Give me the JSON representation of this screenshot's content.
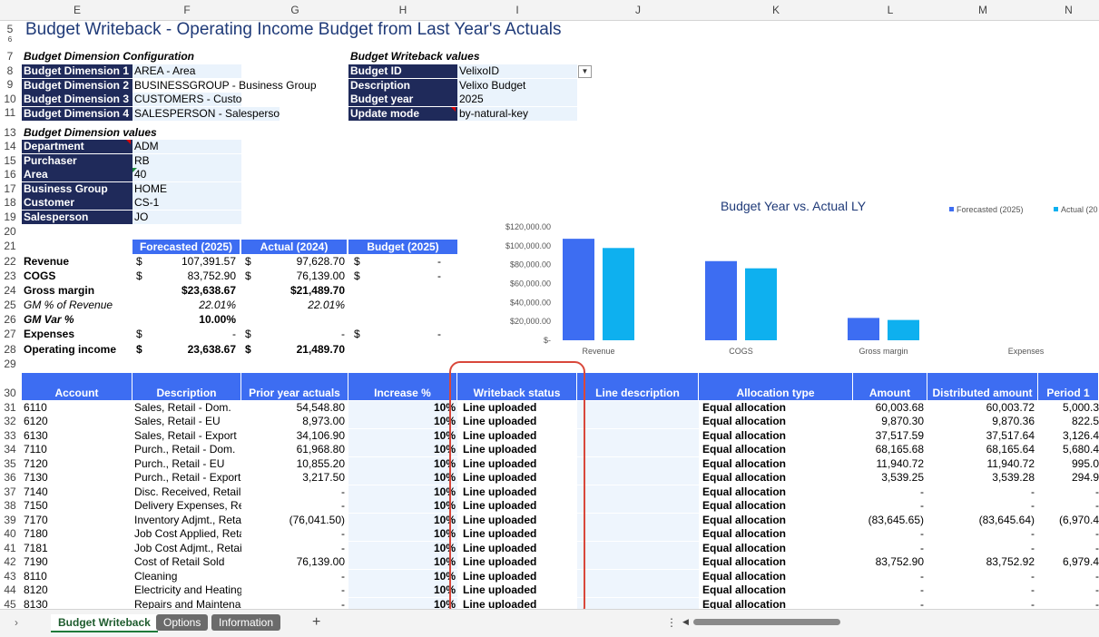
{
  "columns": [
    "E",
    "F",
    "G",
    "H",
    "I",
    "J",
    "K",
    "L",
    "M",
    "N"
  ],
  "title": "Budget Writeback - Operating Income Budget from Last Year's Actuals",
  "dim_config": {
    "heading": "Budget Dimension Configuration",
    "rows": [
      {
        "label": "Budget Dimension 1",
        "value": "AREA - Area"
      },
      {
        "label": "Budget Dimension 2",
        "value": "BUSINESSGROUP - Business Group"
      },
      {
        "label": "Budget Dimension 3",
        "value": "CUSTOMERS - Customer"
      },
      {
        "label": "Budget Dimension 4",
        "value": "SALESPERSON - Salesperson"
      }
    ]
  },
  "writeback_values": {
    "heading": "Budget Writeback values",
    "rows": [
      {
        "label": "Budget ID",
        "value": "VelixoID"
      },
      {
        "label": "Description",
        "value": "Velixo Budget"
      },
      {
        "label": "Budget year",
        "value": "2025"
      },
      {
        "label": "Update mode",
        "value": "by-natural-key"
      }
    ]
  },
  "dim_values": {
    "heading": "Budget Dimension values",
    "rows": [
      {
        "label": "Department",
        "value": "ADM"
      },
      {
        "label": "Purchaser",
        "value": "RB"
      },
      {
        "label": "Area",
        "value": "40"
      },
      {
        "label": "Business Group",
        "value": "HOME"
      },
      {
        "label": "Customer",
        "value": "CS-1"
      },
      {
        "label": "Salesperson",
        "value": "JO"
      }
    ]
  },
  "summary": {
    "headers": [
      "Forecasted (2025)",
      "Actual (2024)",
      "Budget (2025)"
    ],
    "rows": [
      {
        "label": "Revenue",
        "c1": "$",
        "v1": "107,391.57",
        "c2": "$",
        "v2": "97,628.70",
        "c3": "$",
        "v3": "-",
        "style": "b"
      },
      {
        "label": "COGS",
        "c1": "$",
        "v1": "83,752.90",
        "c2": "$",
        "v2": "76,139.00",
        "c3": "$",
        "v3": "-",
        "style": "b"
      },
      {
        "label": "Gross margin",
        "c1": "",
        "v1": "$23,638.67",
        "c2": "",
        "v2": "$21,489.70",
        "c3": "",
        "v3": "",
        "style": "bb"
      },
      {
        "label": "GM % of Revenue",
        "c1": "",
        "v1": "22.01%",
        "c2": "",
        "v2": "22.01%",
        "c3": "",
        "v3": "",
        "style": "i"
      },
      {
        "label": "GM Var %",
        "c1": "",
        "v1": "10.00%",
        "c2": "",
        "v2": "",
        "c3": "",
        "v3": "",
        "style": "bi"
      },
      {
        "label": "Expenses",
        "c1": "$",
        "v1": "-",
        "c2": "$",
        "v2": "-",
        "c3": "$",
        "v3": "-",
        "style": "b"
      },
      {
        "label": "Operating income",
        "c1": "$",
        "v1": "23,638.67",
        "c2": "$",
        "v2": "21,489.70",
        "c3": "",
        "v3": "",
        "style": "bb"
      }
    ]
  },
  "chart_data": {
    "type": "bar",
    "title": "Budget Year vs. Actual LY",
    "categories": [
      "Revenue",
      "COGS",
      "Gross margin",
      "Expenses"
    ],
    "series": [
      {
        "name": "Forecasted (2025)",
        "color": "#3d6df2",
        "values": [
          107391.57,
          83752.9,
          23638.67,
          0
        ]
      },
      {
        "name": "Actual (20",
        "color": "#0eb0ef",
        "values": [
          97628.7,
          76139.0,
          21489.7,
          0
        ]
      }
    ],
    "ylim": [
      0,
      120000
    ],
    "yticks": [
      "$-",
      "$20,000.00",
      "$40,000.00",
      "$60,000.00",
      "$80,000.00",
      "$100,000.00",
      "$120,000.00"
    ],
    "legend": "top-right"
  },
  "table": {
    "headers": [
      "Account",
      "Description",
      "Prior year actuals",
      "Increase %",
      "Writeback status",
      "Line description",
      "Allocation type",
      "Amount",
      "Distributed amount",
      "Period 1"
    ],
    "rows": [
      [
        "6110",
        "Sales, Retail - Dom.",
        "54,548.80",
        "10%",
        "Line uploaded",
        "",
        "Equal allocation",
        "60,003.68",
        "60,003.72",
        "5,000.3"
      ],
      [
        "6120",
        "Sales, Retail - EU",
        "8,973.00",
        "10%",
        "Line uploaded",
        "",
        "Equal allocation",
        "9,870.30",
        "9,870.36",
        "822.5"
      ],
      [
        "6130",
        "Sales, Retail - Export",
        "34,106.90",
        "10%",
        "Line uploaded",
        "",
        "Equal allocation",
        "37,517.59",
        "37,517.64",
        "3,126.4"
      ],
      [
        "7110",
        "Purch., Retail - Dom.",
        "61,968.80",
        "10%",
        "Line uploaded",
        "",
        "Equal allocation",
        "68,165.68",
        "68,165.64",
        "5,680.4"
      ],
      [
        "7120",
        "Purch., Retail - EU",
        "10,855.20",
        "10%",
        "Line uploaded",
        "",
        "Equal allocation",
        "11,940.72",
        "11,940.72",
        "995.0"
      ],
      [
        "7130",
        "Purch., Retail - Export",
        "3,217.50",
        "10%",
        "Line uploaded",
        "",
        "Equal allocation",
        "3,539.25",
        "3,539.28",
        "294.9"
      ],
      [
        "7140",
        "Disc. Received, Retail",
        "-",
        "10%",
        "Line uploaded",
        "",
        "Equal allocation",
        "-",
        "-",
        "-"
      ],
      [
        "7150",
        "Delivery Expenses, Ret",
        "-",
        "10%",
        "Line uploaded",
        "",
        "Equal allocation",
        "-",
        "-",
        "-"
      ],
      [
        "7170",
        "Inventory Adjmt., Reta",
        "(76,041.50)",
        "10%",
        "Line uploaded",
        "",
        "Equal allocation",
        "(83,645.65)",
        "(83,645.64)",
        "(6,970.4"
      ],
      [
        "7180",
        "Job Cost Applied, Reta",
        "-",
        "10%",
        "Line uploaded",
        "",
        "Equal allocation",
        "-",
        "-",
        "-"
      ],
      [
        "7181",
        "Job Cost Adjmt., Retail",
        "-",
        "10%",
        "Line uploaded",
        "",
        "Equal allocation",
        "-",
        "-",
        "-"
      ],
      [
        "7190",
        "Cost of Retail Sold",
        "76,139.00",
        "10%",
        "Line uploaded",
        "",
        "Equal allocation",
        "83,752.90",
        "83,752.92",
        "6,979.4"
      ],
      [
        "8110",
        "Cleaning",
        "-",
        "10%",
        "Line uploaded",
        "",
        "Equal allocation",
        "-",
        "-",
        "-"
      ],
      [
        "8120",
        "Electricity and Heating",
        "-",
        "10%",
        "Line uploaded",
        "",
        "Equal allocation",
        "-",
        "-",
        "-"
      ],
      [
        "8130",
        "Repairs and Maintenar",
        "-",
        "10%",
        "Line uploaded",
        "",
        "Equal allocation",
        "-",
        "-",
        "-"
      ]
    ]
  },
  "row_numbers": [
    "5",
    "6",
    "7",
    "8",
    "9",
    "10",
    "11",
    "13",
    "14",
    "15",
    "16",
    "17",
    "18",
    "19",
    "20",
    "21",
    "22",
    "23",
    "24",
    "25",
    "26",
    "27",
    "28",
    "29",
    "30",
    "31",
    "32",
    "33",
    "34",
    "35",
    "36",
    "37",
    "38",
    "39",
    "40",
    "41",
    "42",
    "43",
    "44",
    "45"
  ],
  "tabs": {
    "active": "Budget Writeback",
    "others": [
      "Options",
      "Information"
    ],
    "add": "+",
    "nav": "›",
    "more": "⋮"
  }
}
